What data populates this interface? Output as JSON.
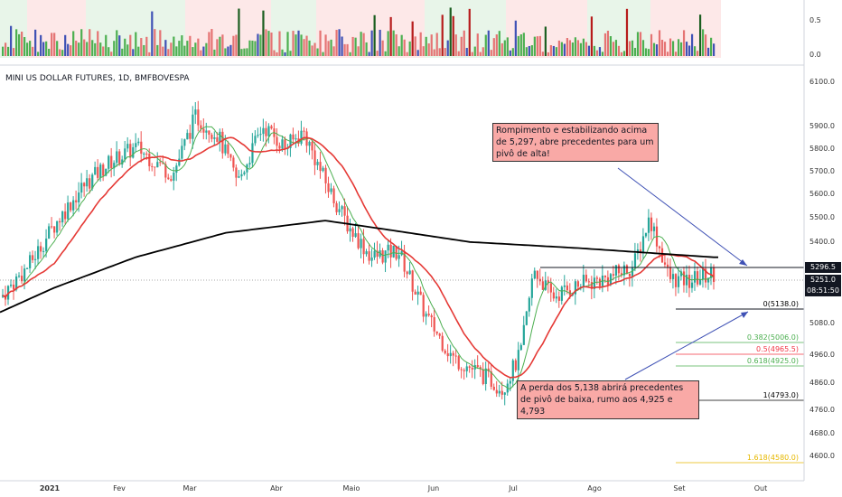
{
  "chart_data": {
    "type": "candlestick",
    "symbol_label": "MINI US DOLLAR FUTURES, 1D, BMFBOVESPA",
    "x_tick_labels": [
      "2021",
      "Fev",
      "Mar",
      "Abr",
      "Maio",
      "Jun",
      "Jul",
      "Ago",
      "Set",
      "Out"
    ],
    "y_ticks": [
      "6100.0",
      "5900.0",
      "5800.0",
      "5700.0",
      "5600.0",
      "5500.0",
      "5400.0",
      "5080.0",
      "4960.0",
      "4860.0",
      "4760.0",
      "4680.0",
      "4600.0"
    ],
    "volume_y_ticks": [
      "0.5",
      "0.0"
    ],
    "price_labels": {
      "resistance": "5296.5",
      "last": "5251.0",
      "countdown": "08:51:50"
    },
    "fib_levels": [
      {
        "label": "0(5138.0)",
        "color": "#000000"
      },
      {
        "label": "0.382(5006.0)",
        "color": "#4caf50"
      },
      {
        "label": "0.5(4965.5)",
        "color": "#f23645"
      },
      {
        "label": "0.618(4925.0)",
        "color": "#4caf50"
      },
      {
        "label": "1(4793.0)",
        "color": "#000000"
      },
      {
        "label": "1.618(4580.0)",
        "color": "#e6b800"
      }
    ],
    "annotations": [
      "Rompimento e estabilizando acima de 5,297, abre precedentes para um pivô de alta!",
      "A perda dos 5,138 abrirá precedentes de pivô de baixa, rumo aos 4,925 e 4,793"
    ],
    "colors": {
      "up": "#26a69a",
      "down": "#ef5350",
      "ma_fast": "#4caf50",
      "ma_mid": "#e53935",
      "ma_slow": "#000000"
    }
  }
}
